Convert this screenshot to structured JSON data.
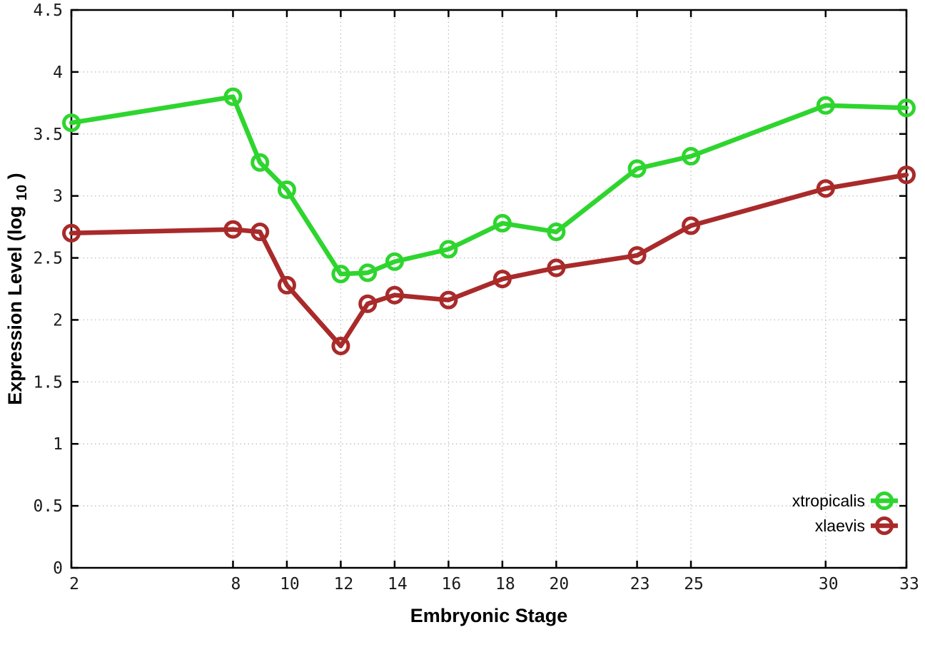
{
  "chart_data": {
    "type": "line",
    "title": "",
    "xlabel": "Embryonic Stage",
    "ylabel": "Expression Level (log10)",
    "ylabel_parts": {
      "pre": "Expression Level (log",
      "sub": "10",
      "post": ")"
    },
    "xlim": [
      2,
      33
    ],
    "ylim": [
      0,
      4.5
    ],
    "grid": true,
    "grid_style": "dotted",
    "legend_position": "inside-bottom-right",
    "xticks": [
      2,
      8,
      10,
      12,
      14,
      16,
      18,
      20,
      23,
      25,
      30,
      33
    ],
    "xtick_labels": [
      "2",
      "8",
      "10",
      "12",
      "14",
      "16",
      "18",
      "20",
      "23",
      "25",
      "30",
      "33"
    ],
    "yticks": [
      0,
      0.5,
      1,
      1.5,
      2,
      2.5,
      3,
      3.5,
      4,
      4.5
    ],
    "ytick_labels": [
      "0",
      "0.5",
      "1",
      "1.5",
      "2",
      "2.5",
      "3",
      "3.5",
      "4",
      "4.5"
    ],
    "x": [
      2,
      8,
      9,
      10,
      12,
      13,
      14,
      16,
      18,
      20,
      23,
      25,
      30,
      33
    ],
    "series": [
      {
        "name": "xtropicalis",
        "color": "#2ed52e",
        "marker": "open-circle",
        "values": [
          3.59,
          3.8,
          3.27,
          3.05,
          2.37,
          2.38,
          2.47,
          2.57,
          2.78,
          2.71,
          3.22,
          3.32,
          3.73,
          3.71
        ]
      },
      {
        "name": "xlaevis",
        "color": "#a92a2a",
        "marker": "open-circle",
        "values": [
          2.7,
          2.73,
          2.71,
          2.28,
          1.79,
          2.13,
          2.2,
          2.16,
          2.33,
          2.42,
          2.52,
          2.76,
          3.06,
          3.17
        ]
      }
    ],
    "colors": {
      "background": "#ffffff",
      "border": "#000000",
      "grid": "#b8b8b8",
      "tick_text": "#1a1a1a"
    }
  }
}
